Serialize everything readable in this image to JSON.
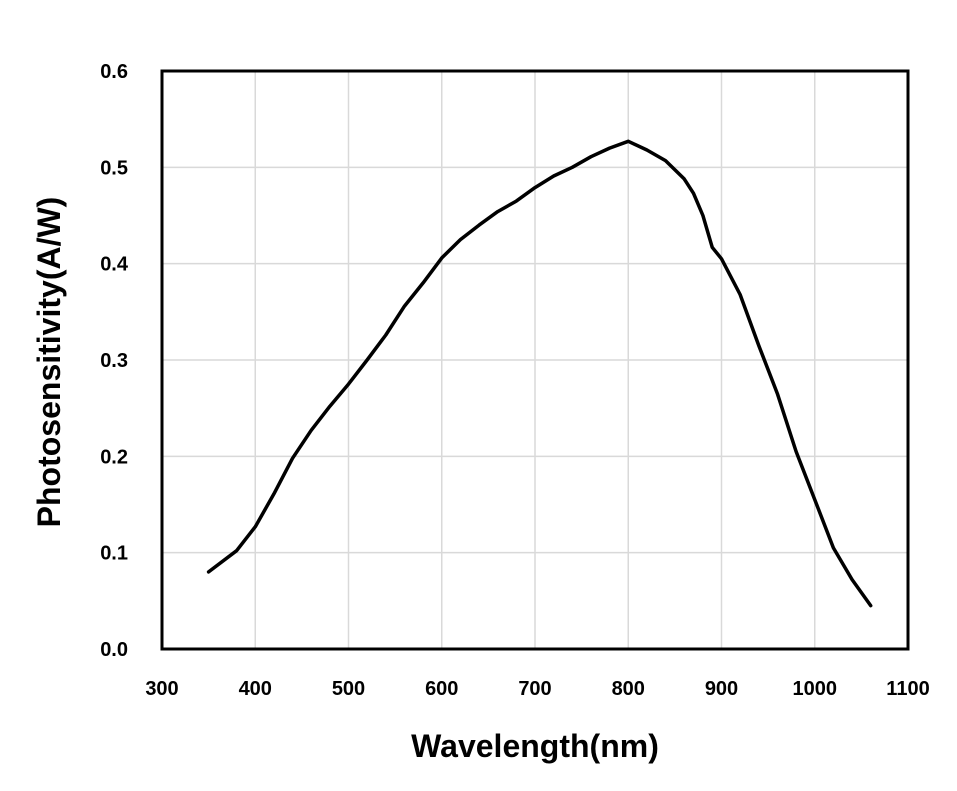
{
  "chart_data": {
    "type": "line",
    "title": "",
    "xlabel": "Wavelength(nm)",
    "ylabel": "Photosensitivity(A/W)",
    "xlim": [
      300,
      1100
    ],
    "ylim": [
      0,
      0.6
    ],
    "xticks": [
      "300",
      "400",
      "500",
      "600",
      "700",
      "800",
      "900",
      "1000",
      "1100"
    ],
    "yticks": [
      "0.0",
      "0.1",
      "0.2",
      "0.3",
      "0.4",
      "0.5",
      "0.6"
    ],
    "grid": true,
    "series": [
      {
        "name": "Photosensitivity",
        "color": "#000000",
        "x": [
          350,
          380,
          400,
          420,
          440,
          460,
          480,
          500,
          520,
          540,
          560,
          580,
          600,
          620,
          640,
          660,
          680,
          700,
          720,
          740,
          760,
          780,
          800,
          820,
          840,
          860,
          870,
          880,
          890,
          900,
          920,
          940,
          960,
          980,
          1000,
          1020,
          1040,
          1060
        ],
        "y": [
          0.08,
          0.102,
          0.127,
          0.161,
          0.198,
          0.227,
          0.252,
          0.275,
          0.3,
          0.326,
          0.356,
          0.38,
          0.406,
          0.425,
          0.44,
          0.454,
          0.465,
          0.479,
          0.491,
          0.5,
          0.511,
          0.52,
          0.527,
          0.518,
          0.507,
          0.488,
          0.473,
          0.45,
          0.417,
          0.405,
          0.368,
          0.315,
          0.265,
          0.205,
          0.155,
          0.105,
          0.072,
          0.045
        ]
      }
    ]
  }
}
